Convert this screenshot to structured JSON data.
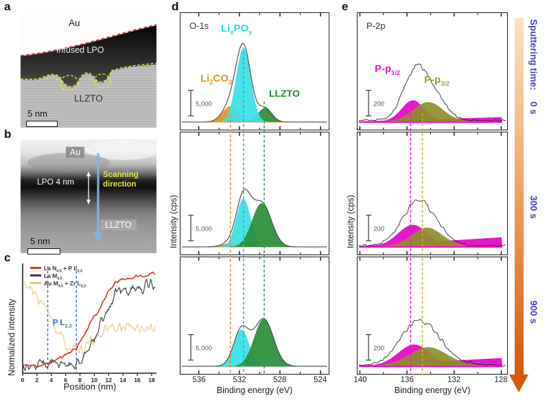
{
  "figure": {
    "panel_labels": {
      "a": "a",
      "b": "b",
      "c": "c",
      "d": "d",
      "e": "e"
    },
    "panels": {
      "a": {
        "au": "Au",
        "infused_lpo": "Infused LPO",
        "llzto": "LLZTO",
        "scalebar": "5 nm"
      },
      "b": {
        "au": "Au",
        "lpo": "LPO 4 nm",
        "scanning_direction": "Scanning direction",
        "llzto": "LLZTO",
        "scalebar": "5 nm"
      }
    },
    "sputter_axis": {
      "title": "Sputtering time:",
      "labels": [
        "0 s",
        "300 s",
        "900 s"
      ],
      "arrow_color_top": "#fbe3c4",
      "arrow_color_bottom": "#d4590a",
      "text_color": "#4343c8"
    }
  },
  "colors": {
    "accent_cyan": "#3fe0e6",
    "accent_orange": "#e8941f",
    "accent_green": "#2f8f3c",
    "accent_magenta": "#e716c9",
    "accent_olive": "#8f8f2a",
    "dash_blue": "#3b78c2",
    "series_red": "#d93a32",
    "series_black": "#3a3a3a",
    "series_yellow": "#e9c478"
  },
  "chart_data": [
    {
      "panel": "c",
      "type": "line",
      "xlabel": "Position (nm)",
      "ylabel": "Normalized intensity",
      "xlim": [
        0,
        18.5
      ],
      "ylim": [
        0,
        1
      ],
      "x_ticks": [
        0,
        2,
        4,
        6,
        8,
        10,
        12,
        14,
        16,
        18
      ],
      "grid": false,
      "legend_position": "top-left",
      "vlines": [
        {
          "x": 3.5,
          "color": "#3b78c2"
        },
        {
          "x": 7.5,
          "color": "#3b78c2"
        }
      ],
      "annotation": {
        "text": "P L_{2,3}",
        "x": 4.2,
        "y": 0.47,
        "color": "#2e6fbe"
      },
      "series": [
        {
          "name": "La N_{4,5} + P L_{2,3}",
          "color": "#d93a32",
          "noise": 0.013,
          "anchors": [
            [
              0,
              0.075
            ],
            [
              1,
              0.075
            ],
            [
              2,
              0.07
            ],
            [
              3,
              0.08
            ],
            [
              3.5,
              0.09
            ],
            [
              4.5,
              0.12
            ],
            [
              5.5,
              0.16
            ],
            [
              6.5,
              0.2
            ],
            [
              7.5,
              0.24
            ],
            [
              8,
              0.3
            ],
            [
              9,
              0.42
            ],
            [
              10,
              0.55
            ],
            [
              10.5,
              0.58
            ],
            [
              11,
              0.66
            ],
            [
              12,
              0.78
            ],
            [
              13,
              0.87
            ],
            [
              14,
              0.9
            ],
            [
              15,
              0.91
            ],
            [
              16,
              0.93
            ],
            [
              17,
              0.93
            ],
            [
              18.5,
              0.96
            ]
          ]
        },
        {
          "name": "La M_{4,5}",
          "color": "#3a3a3a",
          "noise": 0.05,
          "anchors": [
            [
              0,
              0.1
            ],
            [
              1,
              0.08
            ],
            [
              2,
              0.09
            ],
            [
              3,
              0.1
            ],
            [
              4,
              0.11
            ],
            [
              5,
              0.1
            ],
            [
              6,
              0.1
            ],
            [
              7,
              0.09
            ],
            [
              7.5,
              0.1
            ],
            [
              8,
              0.13
            ],
            [
              9,
              0.22
            ],
            [
              10,
              0.35
            ],
            [
              11,
              0.5
            ],
            [
              12,
              0.63
            ],
            [
              13,
              0.76
            ],
            [
              14,
              0.82
            ],
            [
              15,
              0.8
            ],
            [
              16,
              0.84
            ],
            [
              17,
              0.82
            ],
            [
              18.5,
              0.85
            ]
          ]
        },
        {
          "name": "Au M_{4,5} + Zr L_{2,3}",
          "color": "#e9c478",
          "noise": 0.05,
          "anchors": [
            [
              0,
              0.87
            ],
            [
              0.5,
              0.84
            ],
            [
              1,
              0.8
            ],
            [
              1.5,
              0.76
            ],
            [
              2,
              0.73
            ],
            [
              2.5,
              0.7
            ],
            [
              3,
              0.64
            ],
            [
              3.5,
              0.57
            ],
            [
              4,
              0.5
            ],
            [
              4.5,
              0.44
            ],
            [
              5,
              0.38
            ],
            [
              5.5,
              0.33
            ],
            [
              6,
              0.28
            ],
            [
              6.5,
              0.25
            ],
            [
              7,
              0.22
            ],
            [
              7.5,
              0.2
            ],
            [
              8,
              0.2
            ],
            [
              8.5,
              0.22
            ],
            [
              9,
              0.26
            ],
            [
              10,
              0.32
            ],
            [
              11,
              0.38
            ],
            [
              12,
              0.42
            ],
            [
              13,
              0.44
            ],
            [
              14,
              0.45
            ],
            [
              15,
              0.44
            ],
            [
              16,
              0.44
            ],
            [
              17,
              0.43
            ],
            [
              18.5,
              0.42
            ]
          ]
        }
      ]
    },
    {
      "panel": "d",
      "type": "xps",
      "region": "O-1s",
      "xlabel": "Binding energy (eV)",
      "ylabel": "Intensity (cps)",
      "x_ticks": [
        536,
        532,
        528,
        524
      ],
      "xlim": [
        537.8,
        523.2
      ],
      "scalebar_label": "5,000",
      "components": [
        {
          "name": "Li_{2}CO_{3}",
          "color": "#e8941f"
        },
        {
          "name": "Li_{x}PO_{y}",
          "color": "#2fd6dc"
        },
        {
          "name": "LLZTO",
          "color": "#2f9e3f"
        }
      ],
      "dashed_lines": [
        {
          "x": 532.9,
          "color": "#e8892a"
        },
        {
          "x": 531.6,
          "color": "#25b5d5"
        },
        {
          "x": 529.55,
          "color": "#2f9e4f"
        }
      ],
      "spectra": [
        {
          "sputter_time": "0 s",
          "tail_color": "#e8941f",
          "peaks": [
            {
              "component": "Li_{2}CO_{3}",
              "center": 532.9,
              "width": 0.78,
              "amp": 0.18,
              "color": "#e8941f"
            },
            {
              "component": "LLZTO",
              "center": 529.5,
              "width": 0.68,
              "amp": 0.16,
              "color": "#2f8f3c"
            },
            {
              "component": "Li_{x}PO_{y}",
              "center": 531.6,
              "width": 0.72,
              "amp": 0.85,
              "color": "#3fe0e6"
            }
          ]
        },
        {
          "sputter_time": "300 s",
          "tail_color": "#e8941f",
          "peaks": [
            {
              "component": "Li_{2}CO_{3}",
              "center": 532.9,
              "width": 0.8,
              "amp": 0.04,
              "color": "#e8941f"
            },
            {
              "component": "Li_{x}PO_{y}",
              "center": 531.6,
              "width": 0.7,
              "amp": 0.52,
              "color": "#3fe0e6"
            },
            {
              "component": "LLZTO",
              "center": 529.8,
              "width": 0.95,
              "amp": 0.47,
              "color": "#2f8f3c"
            }
          ]
        },
        {
          "sputter_time": "900 s",
          "tail_color": "#3c9c44",
          "peaks": [
            {
              "component": "Li_{x}PO_{y}",
              "center": 531.8,
              "width": 0.75,
              "amp": 0.42,
              "color": "#3fe0e6"
            },
            {
              "component": "LLZTO",
              "center": 529.6,
              "width": 0.95,
              "amp": 0.54,
              "color": "#2f8f3c"
            }
          ]
        }
      ]
    },
    {
      "panel": "e",
      "type": "xps",
      "region": "P-2p",
      "xlabel": "Binding energy (eV)",
      "ylabel": "Intensity (cps)",
      "x_ticks": [
        140,
        136,
        132,
        128
      ],
      "xlim": [
        140.2,
        127.5
      ],
      "scalebar_label": "200",
      "components": [
        {
          "name": "P-p_{1/2}",
          "color": "#e716c9"
        },
        {
          "name": "P-p_{3/2}",
          "color": "#a0a030"
        }
      ],
      "dashed_lines": [
        {
          "x": 135.7,
          "color": "#e716c9"
        },
        {
          "x": 134.7,
          "color": "#c9b121"
        }
      ],
      "spectra": [
        {
          "sputter_time": "0 s",
          "trace_scale": 1.6,
          "wedge": 0.05,
          "peaks": [
            {
              "component": "P-p_{1/2}",
              "center": 135.5,
              "width": 0.95,
              "amp": 0.24,
              "color": "#e716c9"
            },
            {
              "component": "P-p_{3/2}",
              "center": 134.2,
              "width": 1.25,
              "amp": 0.22,
              "color": "#8f8f2a"
            }
          ]
        },
        {
          "sputter_time": "300 s",
          "trace_scale": 1.25,
          "wedge": 0.1,
          "peaks": [
            {
              "component": "P-p_{1/2}",
              "center": 135.5,
              "width": 1.25,
              "amp": 0.23,
              "color": "#e716c9"
            },
            {
              "component": "P-p_{3/2}",
              "center": 134.3,
              "width": 1.3,
              "amp": 0.2,
              "color": "#8f8f2a"
            }
          ]
        },
        {
          "sputter_time": "900 s",
          "trace_scale": 1.25,
          "wedge": 0.09,
          "peaks": [
            {
              "component": "P-p_{1/2}",
              "center": 135.4,
              "width": 1.35,
              "amp": 0.24,
              "color": "#e716c9"
            },
            {
              "component": "P-p_{3/2}",
              "center": 134.2,
              "width": 1.6,
              "amp": 0.21,
              "color": "#8f8f2a"
            }
          ]
        }
      ]
    }
  ]
}
